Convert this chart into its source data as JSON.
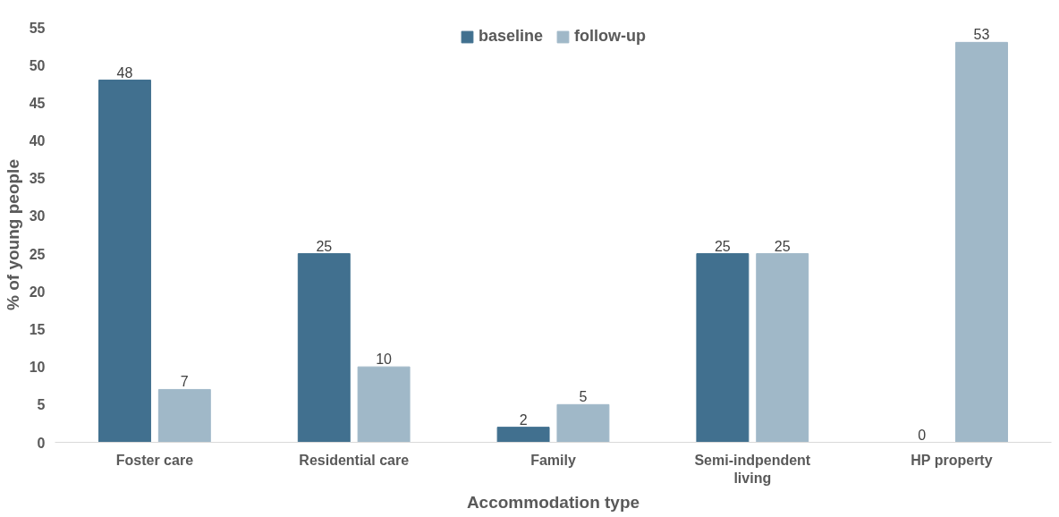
{
  "chart_data": {
    "type": "bar",
    "xlabel": "Accommodation type",
    "ylabel": "% of young people",
    "categories": [
      "Foster care",
      "Residential care",
      "Family",
      "Semi-indpendent living",
      "HP property"
    ],
    "series": [
      {
        "name": "baseline",
        "color": "#41708f",
        "values": [
          48,
          25,
          2,
          25,
          0
        ]
      },
      {
        "name": "follow-up",
        "color": "#a0b8c8",
        "values": [
          7,
          10,
          5,
          25,
          53
        ]
      }
    ],
    "ylim": [
      0,
      55
    ],
    "yticks": [
      0,
      5,
      10,
      15,
      20,
      25,
      30,
      35,
      40,
      45,
      50,
      55
    ],
    "grid": false,
    "legend": "top",
    "data_labels": true
  }
}
